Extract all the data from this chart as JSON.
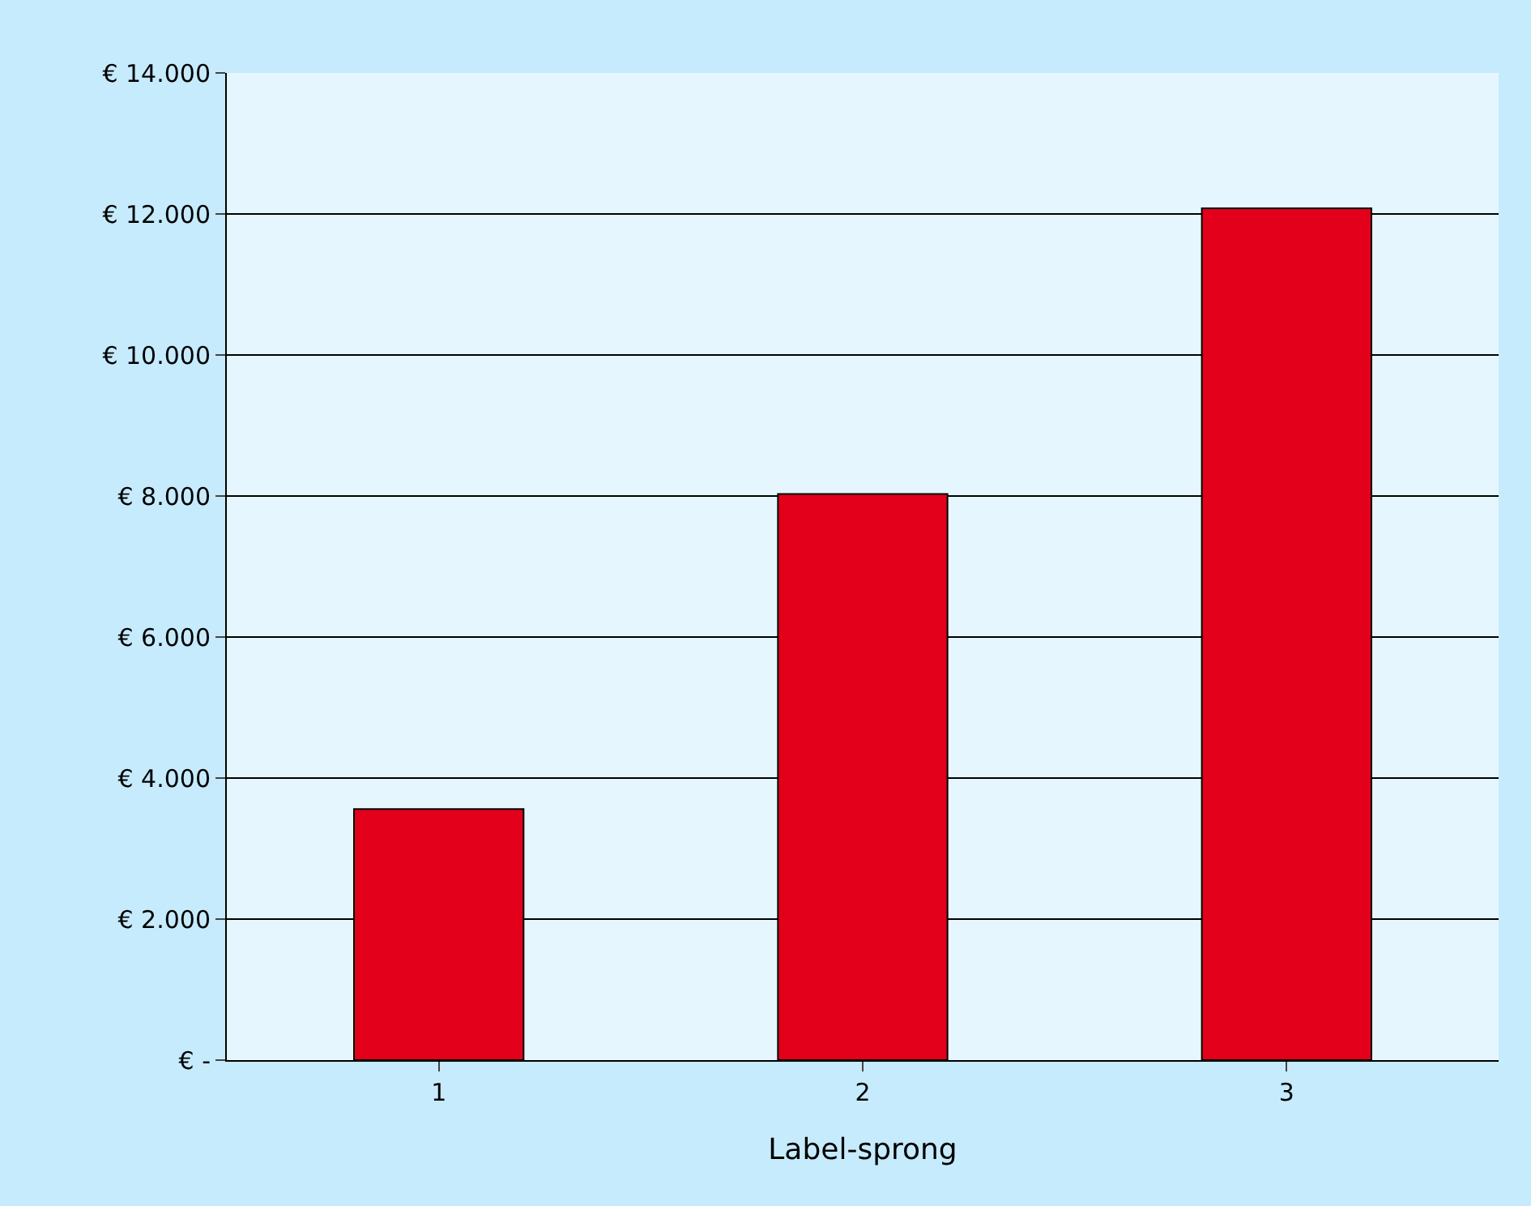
{
  "chart_data": {
    "type": "bar",
    "xlabel": "Label-sprong",
    "categories": [
      "1",
      "2",
      "3"
    ],
    "values": [
      3560,
      8030,
      12080
    ],
    "color": "#e2001a",
    "ylim": [
      0,
      14000
    ],
    "yticks": [
      {
        "value": 0,
        "label": "€ -"
      },
      {
        "value": 2000,
        "label": "€ 2.000"
      },
      {
        "value": 4000,
        "label": "€ 4.000"
      },
      {
        "value": 6000,
        "label": "€ 6.000"
      },
      {
        "value": 8000,
        "label": "€ 8.000"
      },
      {
        "value": 10000,
        "label": "€ 10.000"
      },
      {
        "value": 12000,
        "label": "€ 12.000"
      },
      {
        "value": 14000,
        "label": "€ 14.000"
      }
    ],
    "grid": "y",
    "legend": false
  }
}
